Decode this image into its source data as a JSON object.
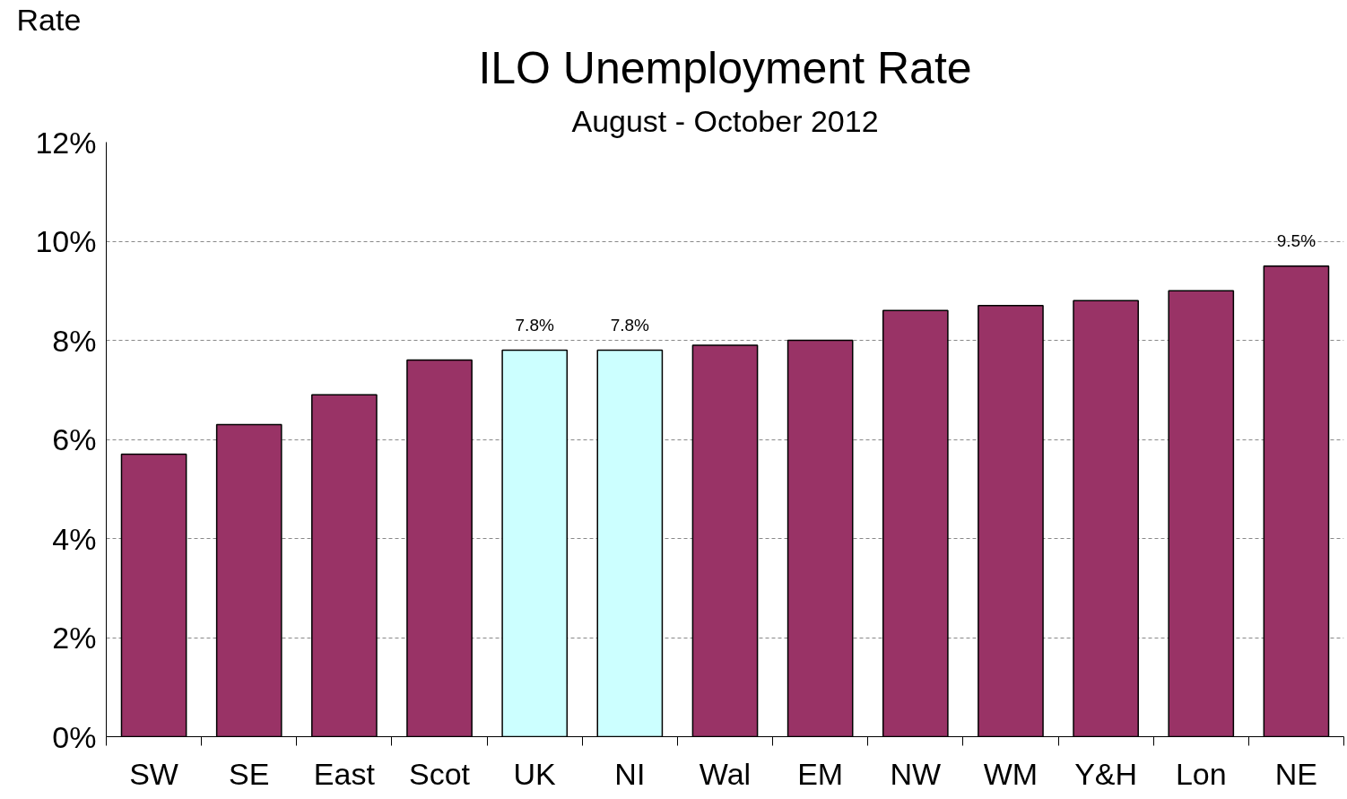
{
  "chart_data": {
    "type": "bar",
    "title": "ILO Unemployment Rate",
    "subtitle": "August - October 2012",
    "ylabel": "Rate",
    "categories": [
      "SW",
      "SE",
      "East",
      "Scot",
      "UK",
      "NI",
      "Wal",
      "EM",
      "NW",
      "WM",
      "Y&H",
      "Lon",
      "NE"
    ],
    "values": [
      5.7,
      6.3,
      6.9,
      7.6,
      7.8,
      7.8,
      7.9,
      8.0,
      8.6,
      8.7,
      8.8,
      9.0,
      9.5
    ],
    "colors": [
      "#993366",
      "#993366",
      "#993366",
      "#993366",
      "#ccffff",
      "#ccffff",
      "#993366",
      "#993366",
      "#993366",
      "#993366",
      "#993366",
      "#993366",
      "#993366"
    ],
    "value_labels": [
      null,
      null,
      null,
      null,
      "7.8%",
      "7.8%",
      null,
      null,
      null,
      null,
      null,
      null,
      "9.5%"
    ],
    "ylim": [
      0,
      12
    ],
    "yticks": [
      {
        "value": 0,
        "label": "0%"
      },
      {
        "value": 2,
        "label": "2%"
      },
      {
        "value": 4,
        "label": "4%"
      },
      {
        "value": 6,
        "label": "6%"
      },
      {
        "value": 8,
        "label": "8%"
      },
      {
        "value": 10,
        "label": "10%"
      },
      {
        "value": 12,
        "label": "12%"
      }
    ],
    "grid": "y"
  }
}
